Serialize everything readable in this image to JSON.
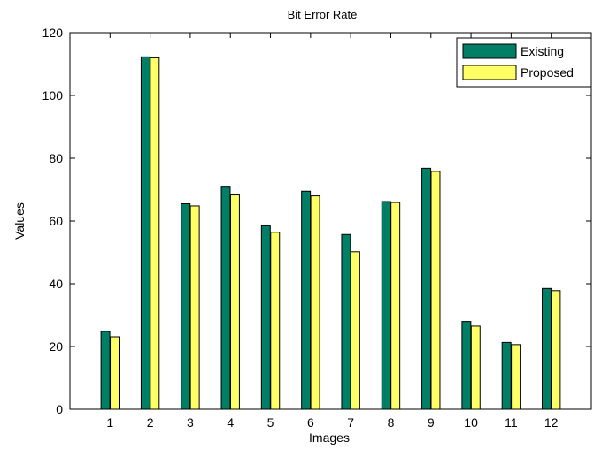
{
  "chart_data": {
    "type": "bar",
    "title": "Bit Error Rate",
    "xlabel": "Images",
    "ylabel": "Values",
    "categories": [
      "1",
      "2",
      "3",
      "4",
      "5",
      "6",
      "7",
      "8",
      "9",
      "10",
      "11",
      "12"
    ],
    "series": [
      {
        "name": "Existing",
        "color": "#007f66",
        "values": [
          24.8,
          112.3,
          65.5,
          70.8,
          58.5,
          69.5,
          55.7,
          66.2,
          76.8,
          28.0,
          21.3,
          38.5
        ]
      },
      {
        "name": "Proposed",
        "color": "#ffff66",
        "values": [
          23.1,
          112.0,
          64.8,
          68.3,
          56.4,
          68.0,
          50.2,
          65.9,
          75.8,
          26.5,
          20.6,
          37.8
        ]
      }
    ],
    "ylim": [
      0,
      120
    ],
    "xlim": [
      0,
      13
    ],
    "yticks": [
      0,
      20,
      40,
      60,
      80,
      100,
      120
    ],
    "grid": false,
    "legend_position": "top-right"
  }
}
